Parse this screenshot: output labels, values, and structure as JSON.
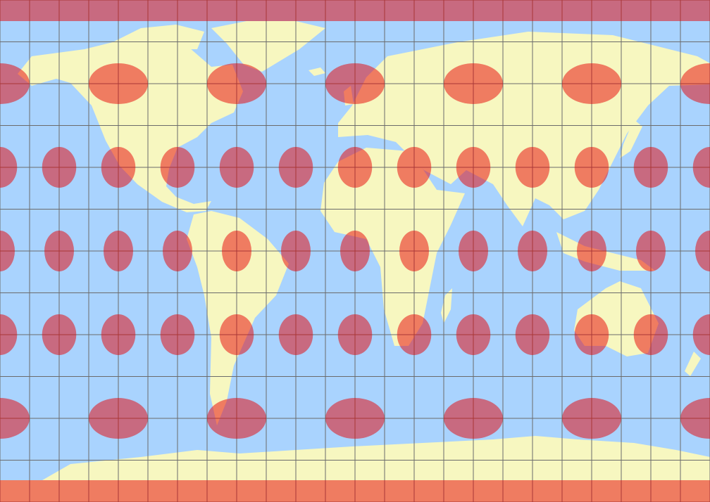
{
  "map": {
    "colors": {
      "ocean": "#a9d3fe",
      "land": "#f7f7c0",
      "indicatrix": "#e70102",
      "graticule": "#6b6b6b"
    },
    "graticule_step_deg": 15,
    "indicatrices": [
      {
        "lat": 60,
        "lon_step": 60
      },
      {
        "lat": 30,
        "lon_step": 30
      },
      {
        "lat": 0,
        "lon_step": 30
      },
      {
        "lat": -30,
        "lon_step": 30
      },
      {
        "lat": -60,
        "lon_step": 60
      }
    ]
  }
}
